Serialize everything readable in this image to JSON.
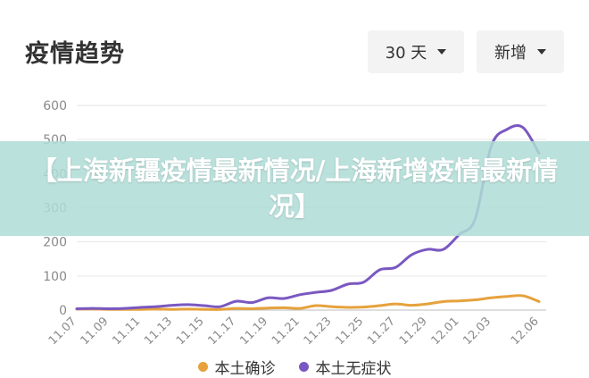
{
  "header": {
    "title": "疫情趋势",
    "range_label": "30 天",
    "metric_label": "新增"
  },
  "banner": {
    "text": "【上海新疆疫情最新情况/上海新增疫情最新情况】"
  },
  "colors": {
    "confirmed": "#e6a23c",
    "asymptomatic": "#7a58c1",
    "grid": "#e6e6e6",
    "axis_text": "#8a8a8a"
  },
  "chart_data": {
    "type": "line",
    "title": "",
    "xlabel": "",
    "ylabel": "",
    "ylim": [
      0,
      600
    ],
    "yticks": [
      0,
      100,
      200,
      300,
      400,
      500,
      600
    ],
    "grid": true,
    "legend_position": "bottom",
    "x": [
      "11.07",
      "11.08",
      "11.09",
      "11.10",
      "11.11",
      "11.12",
      "11.13",
      "11.14",
      "11.15",
      "11.16",
      "11.17",
      "11.18",
      "11.19",
      "11.20",
      "11.21",
      "11.22",
      "11.23",
      "11.24",
      "11.25",
      "11.26",
      "11.27",
      "11.28",
      "11.29",
      "11.30",
      "12.01",
      "12.02",
      "12.03",
      "12.04",
      "12.05",
      "12.06"
    ],
    "x_tick_labels": [
      "11.07",
      "11.09",
      "11.11",
      "11.13",
      "11.15",
      "11.17",
      "11.19",
      "11.21",
      "11.23",
      "11.25",
      "11.27",
      "11.29",
      "12.01",
      "12.03",
      "12.06"
    ],
    "series": [
      {
        "name": "本土确诊",
        "color": "#e6a23c",
        "values": [
          3,
          3,
          2,
          2,
          2,
          3,
          2,
          3,
          2,
          2,
          5,
          4,
          6,
          7,
          5,
          13,
          10,
          8,
          9,
          13,
          18,
          14,
          18,
          25,
          27,
          30,
          36,
          40,
          42,
          25
        ]
      },
      {
        "name": "本土无症状",
        "color": "#7a58c1",
        "values": [
          4,
          5,
          4,
          5,
          8,
          10,
          14,
          16,
          13,
          10,
          26,
          22,
          36,
          34,
          45,
          52,
          58,
          76,
          82,
          118,
          125,
          162,
          178,
          178,
          222,
          268,
          480,
          530,
          535,
          460
        ]
      }
    ]
  }
}
